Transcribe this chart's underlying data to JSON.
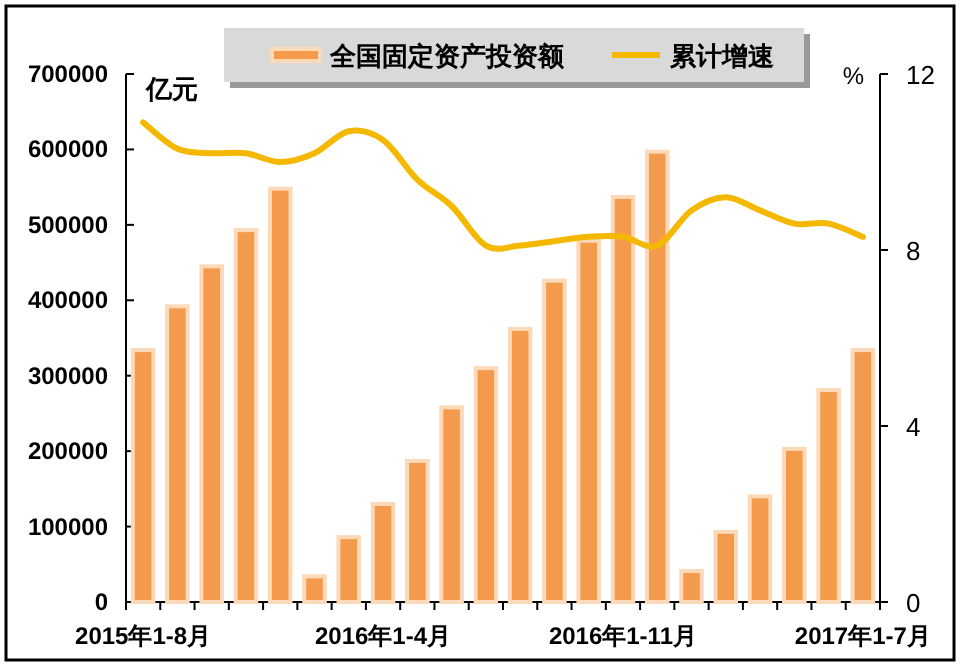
{
  "chart_data": {
    "type": "bar",
    "ylabel": "亿元",
    "y2label": "%",
    "categories": [
      "2015年1-8月",
      null,
      null,
      null,
      null,
      null,
      null,
      "2016年1-4月",
      null,
      null,
      null,
      null,
      null,
      null,
      "2016年1-11月",
      null,
      null,
      null,
      null,
      null,
      null,
      "2017年1-7月"
    ],
    "series": [
      {
        "name": "全国固定资产投资额",
        "color": "#f39a4c",
        "values": [
          334000,
          392000,
          445000,
          493000,
          548000,
          34000,
          86000,
          130000,
          187000,
          258000,
          310000,
          362000,
          426000,
          479000,
          537000,
          597000,
          41000,
          93000,
          140000,
          203000,
          281000,
          334000
        ]
      },
      {
        "name": "累计增速",
        "type": "line",
        "axis": "y2",
        "color": "#f5b800",
        "values": [
          10.9,
          10.3,
          10.2,
          10.2,
          10.0,
          10.2,
          10.7,
          10.5,
          9.6,
          9.0,
          8.1,
          8.1,
          8.2,
          8.3,
          8.3,
          8.1,
          8.9,
          9.2,
          8.9,
          8.6,
          8.6,
          8.3
        ]
      }
    ],
    "ylim": [
      0,
      700000
    ],
    "yticks": [
      0,
      100000,
      200000,
      300000,
      400000,
      500000,
      600000,
      700000
    ],
    "y2lim": [
      0,
      12
    ],
    "y2ticks": [
      0,
      4,
      8,
      12
    ],
    "legend": "top",
    "marker": "none",
    "line_style": "solid"
  }
}
